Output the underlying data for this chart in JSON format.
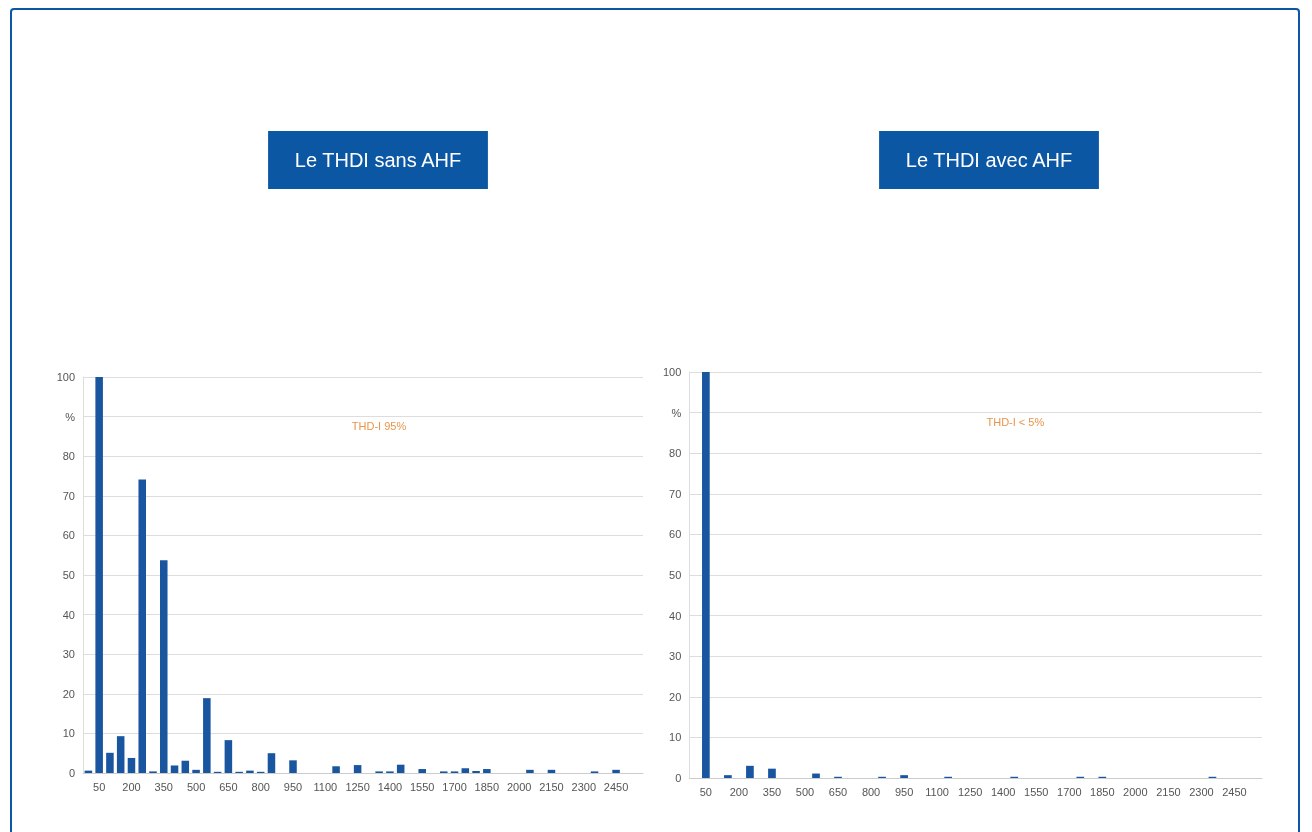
{
  "chart_data": [
    {
      "type": "bar",
      "title": "Le THDI sans AHF",
      "categories": [
        null,
        "50",
        null,
        null,
        "200",
        null,
        null,
        "350",
        null,
        null,
        "500",
        null,
        null,
        "650",
        null,
        null,
        "800",
        null,
        null,
        "950",
        null,
        null,
        "1100",
        null,
        null,
        "1250",
        null,
        null,
        "1400",
        null,
        null,
        "1550",
        null,
        null,
        "1700",
        null,
        null,
        "1850",
        null,
        null,
        "2000",
        null,
        null,
        "2150",
        null,
        null,
        "2300",
        null,
        null,
        "2450",
        null,
        null
      ],
      "values": [
        0.6,
        100,
        5.1,
        9.3,
        3.8,
        74.1,
        0.4,
        53.7,
        1.9,
        3.1,
        0.8,
        18.9,
        0.3,
        8.3,
        0.3,
        0.6,
        0.3,
        5.0,
        0,
        3.2,
        0,
        0,
        0,
        1.7,
        0,
        2.0,
        0,
        0.4,
        0.4,
        2.1,
        0,
        1.0,
        0,
        0.4,
        0.4,
        1.2,
        0.5,
        1.0,
        0,
        0,
        0,
        0.8,
        0,
        0.8,
        0,
        0,
        0,
        0.4,
        0,
        0.8,
        0,
        0
      ],
      "color": "#1a56a0",
      "ylim": [
        0,
        100
      ],
      "yticks": [
        0,
        10,
        20,
        30,
        40,
        50,
        60,
        70,
        80,
        {
          "value": 90,
          "label": "%"
        },
        100
      ],
      "grid": true,
      "annotations": [
        "THD-I 95%"
      ]
    },
    {
      "type": "bar",
      "title": "Le THDI avec AHF",
      "categories": [
        null,
        "50",
        null,
        null,
        "200",
        null,
        null,
        "350",
        null,
        null,
        "500",
        null,
        null,
        "650",
        null,
        null,
        "800",
        null,
        null,
        "950",
        null,
        null,
        "1100",
        null,
        null,
        "1250",
        null,
        null,
        "1400",
        null,
        null,
        "1550",
        null,
        null,
        "1700",
        null,
        null,
        "1850",
        null,
        null,
        "2000",
        null,
        null,
        "2150",
        null,
        null,
        "2300",
        null,
        null,
        "2450",
        null,
        null
      ],
      "values": [
        0,
        100,
        0,
        0.7,
        0,
        3.0,
        0,
        2.3,
        0,
        0,
        0,
        1.1,
        0,
        0.3,
        0,
        0,
        0,
        0.3,
        0,
        0.7,
        0,
        0,
        0,
        0.3,
        0,
        0,
        0,
        0,
        0,
        0.3,
        0,
        0,
        0,
        0,
        0,
        0.3,
        0,
        0.3,
        0,
        0,
        0,
        0,
        0,
        0,
        0,
        0,
        0,
        0.3,
        0,
        0,
        0,
        0
      ],
      "color": "#1a56a0",
      "ylim": [
        0,
        100
      ],
      "yticks": [
        0,
        10,
        20,
        30,
        40,
        50,
        60,
        70,
        80,
        {
          "value": 90,
          "label": "%"
        },
        100
      ],
      "grid": true,
      "annotations": [
        "THD-I < 5%"
      ]
    }
  ]
}
